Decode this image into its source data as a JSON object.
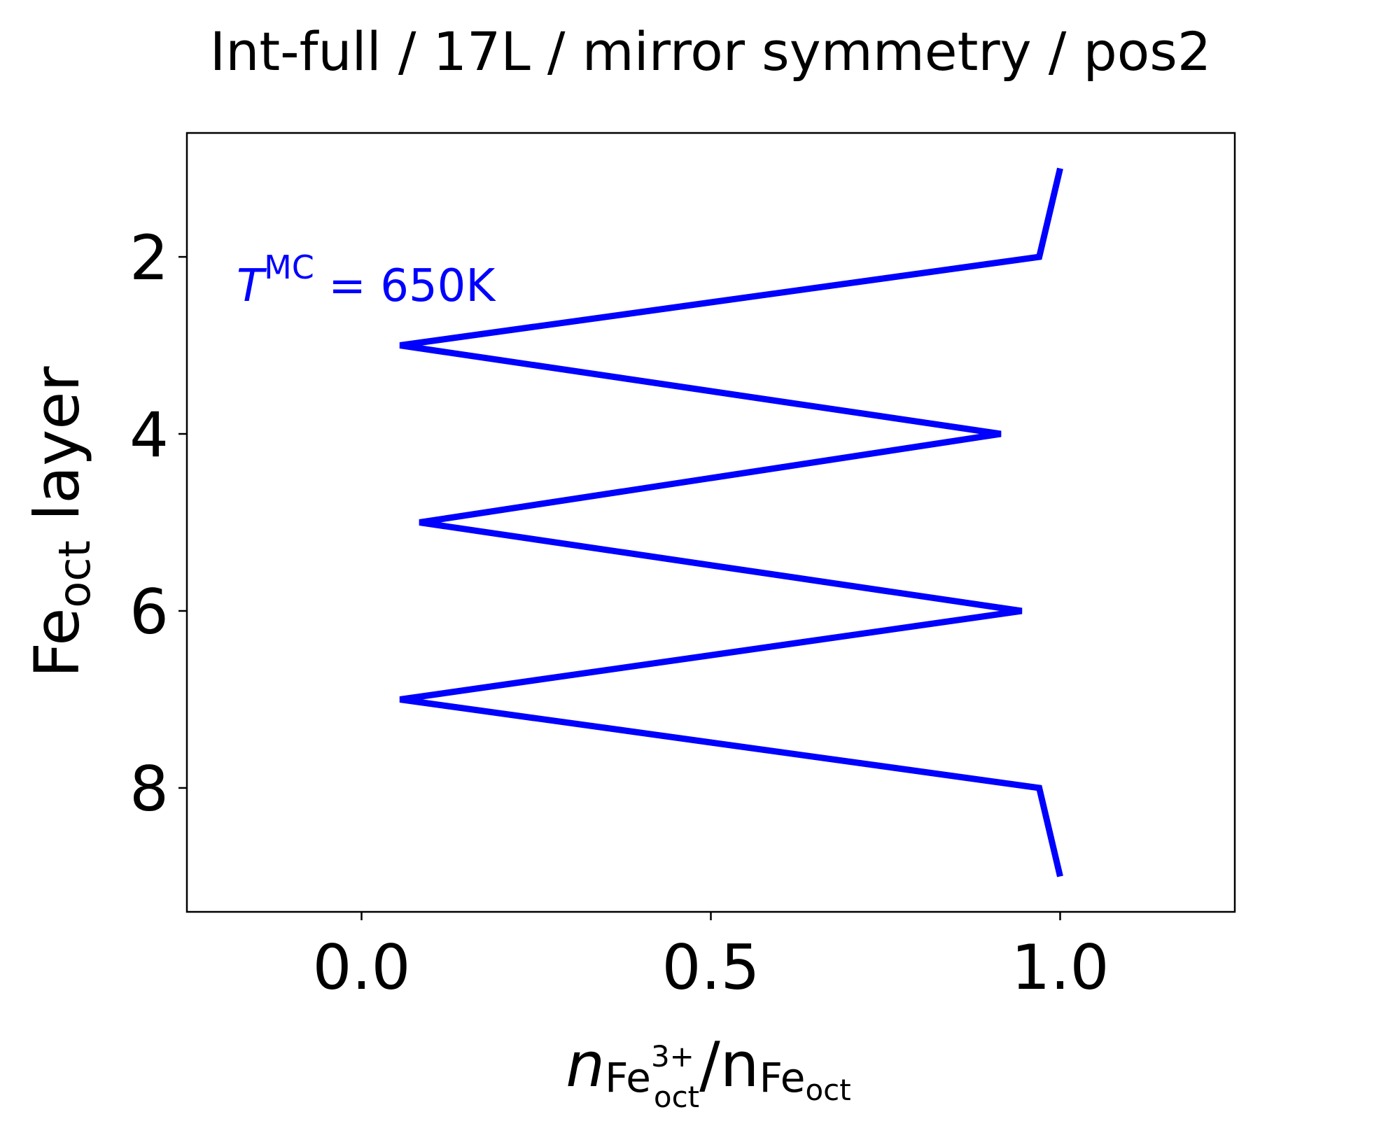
{
  "chart_data": {
    "type": "line",
    "title": "Int-full / 17L / mirror symmetry / pos2",
    "xlabel": {
      "n": "n",
      "fe3": "Fe",
      "fe3_sup": "3+",
      "fe3_sub": "oct",
      "slash": "/n",
      "fe": "Fe",
      "fe_sub": "oct"
    },
    "ylabel": {
      "main": "Fe",
      "sub": "oct",
      "rest": " layer"
    },
    "xlim": [
      -0.25,
      1.25
    ],
    "ylim": [
      9.4,
      0.6
    ],
    "y_inverted": true,
    "xticks": [
      0.0,
      0.5,
      1.0
    ],
    "xtick_labels": [
      "0.0",
      "0.5",
      "1.0"
    ],
    "yticks": [
      2,
      4,
      6,
      8
    ],
    "ytick_labels": [
      "2",
      "4",
      "6",
      "8"
    ],
    "grid": false,
    "series": [
      {
        "color": "#0000ff",
        "x": [
          1.0,
          0.97,
          0.055,
          0.915,
          0.083,
          0.945,
          0.055,
          0.97,
          1.0
        ],
        "y": [
          1,
          2,
          3,
          4,
          5,
          6,
          7,
          8,
          9
        ]
      }
    ],
    "annotation": {
      "T": "T",
      "sup": "MC",
      "rest": " = 650K",
      "color": "#0000ff"
    }
  }
}
